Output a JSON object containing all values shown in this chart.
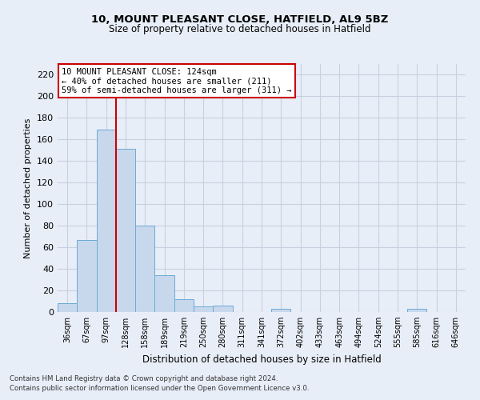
{
  "title1": "10, MOUNT PLEASANT CLOSE, HATFIELD, AL9 5BZ",
  "title2": "Size of property relative to detached houses in Hatfield",
  "xlabel": "Distribution of detached houses by size in Hatfield",
  "ylabel": "Number of detached properties",
  "categories": [
    "36sqm",
    "67sqm",
    "97sqm",
    "128sqm",
    "158sqm",
    "189sqm",
    "219sqm",
    "250sqm",
    "280sqm",
    "311sqm",
    "341sqm",
    "372sqm",
    "402sqm",
    "433sqm",
    "463sqm",
    "494sqm",
    "524sqm",
    "555sqm",
    "585sqm",
    "616sqm",
    "646sqm"
  ],
  "values": [
    8,
    67,
    169,
    151,
    80,
    34,
    12,
    5,
    6,
    0,
    0,
    3,
    0,
    0,
    0,
    0,
    0,
    0,
    3,
    0,
    0
  ],
  "bar_color": "#c8d8ec",
  "bar_edge_color": "#6aaad4",
  "vline_x_index": 3,
  "vline_color": "#cc0000",
  "annotation_text": "10 MOUNT PLEASANT CLOSE: 124sqm\n← 40% of detached houses are smaller (211)\n59% of semi-detached houses are larger (311) →",
  "annotation_box_color": "#ffffff",
  "annotation_box_edge_color": "#cc0000",
  "ylim": [
    0,
    230
  ],
  "yticks": [
    0,
    20,
    40,
    60,
    80,
    100,
    120,
    140,
    160,
    180,
    200,
    220
  ],
  "grid_color": "#c8d0e0",
  "bg_color": "#e8eef8",
  "footnote1": "Contains HM Land Registry data © Crown copyright and database right 2024.",
  "footnote2": "Contains public sector information licensed under the Open Government Licence v3.0."
}
